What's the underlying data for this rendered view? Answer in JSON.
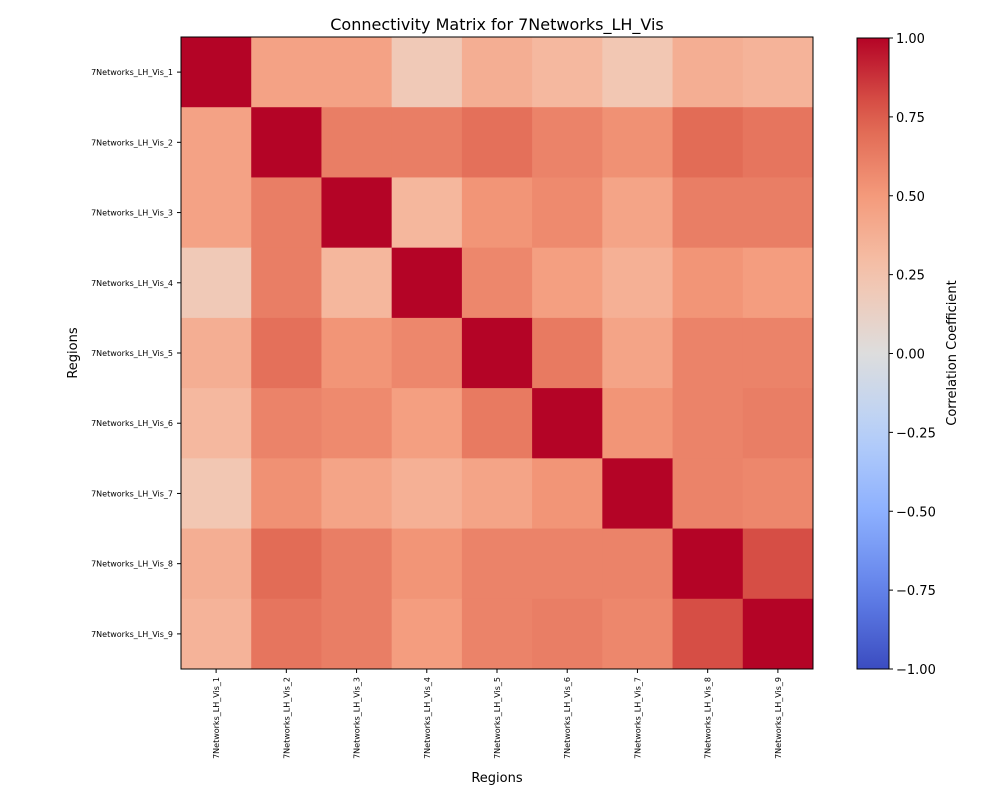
{
  "chart_data": {
    "type": "heatmap",
    "title": "Connectivity Matrix for 7Networks_LH_Vis",
    "xlabel": "Regions",
    "ylabel": "Regions",
    "x_labels": [
      "7Networks_LH_Vis_1",
      "7Networks_LH_Vis_2",
      "7Networks_LH_Vis_3",
      "7Networks_LH_Vis_4",
      "7Networks_LH_Vis_5",
      "7Networks_LH_Vis_6",
      "7Networks_LH_Vis_7",
      "7Networks_LH_Vis_8",
      "7Networks_LH_Vis_9"
    ],
    "y_labels": [
      "7Networks_LH_Vis_1",
      "7Networks_LH_Vis_2",
      "7Networks_LH_Vis_3",
      "7Networks_LH_Vis_4",
      "7Networks_LH_Vis_5",
      "7Networks_LH_Vis_6",
      "7Networks_LH_Vis_7",
      "7Networks_LH_Vis_8",
      "7Networks_LH_Vis_9"
    ],
    "matrix": [
      [
        1.0,
        0.45,
        0.45,
        0.2,
        0.38,
        0.32,
        0.22,
        0.38,
        0.35
      ],
      [
        0.45,
        1.0,
        0.62,
        0.62,
        0.68,
        0.6,
        0.54,
        0.7,
        0.66
      ],
      [
        0.45,
        0.62,
        1.0,
        0.33,
        0.52,
        0.57,
        0.44,
        0.62,
        0.62
      ],
      [
        0.2,
        0.62,
        0.33,
        1.0,
        0.58,
        0.47,
        0.37,
        0.52,
        0.48
      ],
      [
        0.38,
        0.68,
        0.52,
        0.58,
        1.0,
        0.64,
        0.44,
        0.6,
        0.6
      ],
      [
        0.32,
        0.6,
        0.57,
        0.47,
        0.64,
        1.0,
        0.52,
        0.6,
        0.62
      ],
      [
        0.22,
        0.54,
        0.44,
        0.37,
        0.44,
        0.52,
        1.0,
        0.6,
        0.58
      ],
      [
        0.38,
        0.7,
        0.62,
        0.52,
        0.6,
        0.6,
        0.6,
        1.0,
        0.8
      ],
      [
        0.35,
        0.66,
        0.62,
        0.48,
        0.6,
        0.62,
        0.58,
        0.8,
        1.0
      ]
    ],
    "colorbar": {
      "label": "Correlation Coefficient",
      "vmin": -1.0,
      "vmax": 1.0,
      "ticks": [
        1.0,
        0.75,
        0.5,
        0.25,
        0.0,
        -0.25,
        -0.5,
        -0.75,
        -1.0
      ],
      "tick_labels": [
        "1.00",
        "0.75",
        "0.50",
        "0.25",
        "0.00",
        "−0.25",
        "−0.50",
        "−0.75",
        "−1.00"
      ],
      "colormap": "coolwarm"
    },
    "grid": false
  }
}
